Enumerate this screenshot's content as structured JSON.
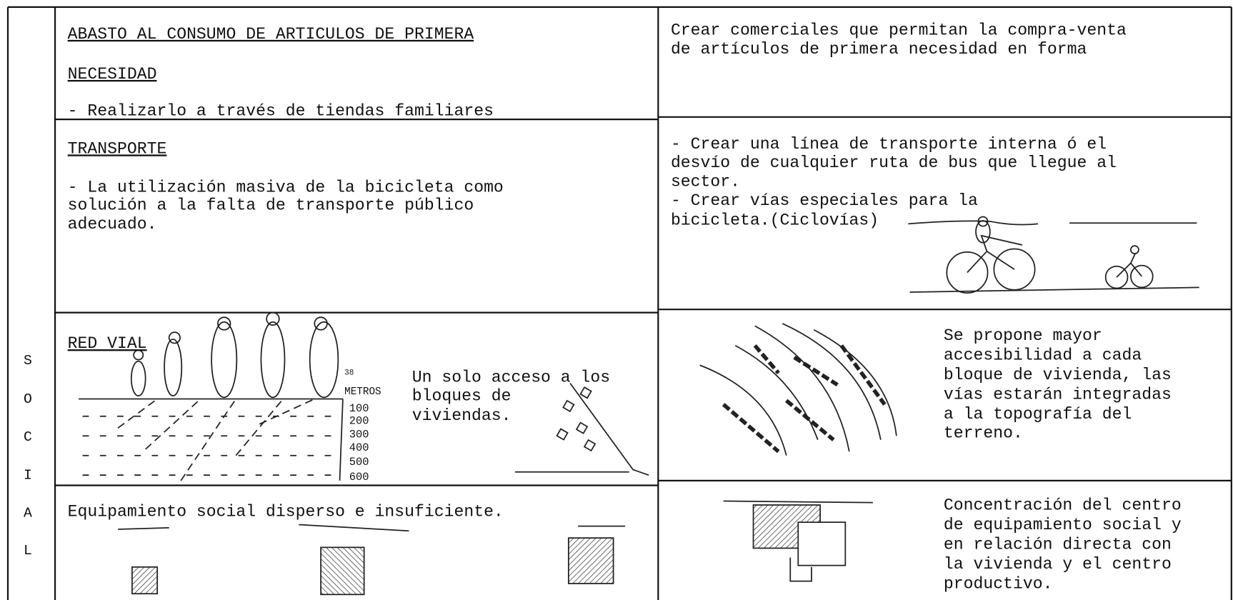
{
  "sidebar": {
    "letters": [
      "S",
      "O",
      "C",
      "I",
      "A",
      "L"
    ]
  },
  "rows": [
    {
      "left": {
        "title_lines": [
          "ABASTO AL CONSUMO DE ARTICULOS DE PRIMERA",
          "NECESIDAD"
        ],
        "lines": [
          "- Realizarlo a través de tiendas familiares"
        ]
      },
      "right": {
        "lines": [
          "Crear comerciales que permitan la compra-venta",
          "de artículos de primera necesidad en forma"
        ]
      }
    },
    {
      "left": {
        "title_lines": [
          "TRANSPORTE"
        ],
        "lines": [
          "- La utilización masiva de la bicicleta como",
          "solución a la falta de transporte público",
          "adecuado."
        ]
      },
      "right": {
        "lines": [
          "- Crear una línea de transporte interna ó el",
          "desvío de cualquier ruta de bus que llegue al",
          "sector.",
          "- Crear vías especiales para la",
          "bicicleta.(Ciclovías)"
        ]
      }
    },
    {
      "left": {
        "title_lines": [
          "RED VIAL"
        ],
        "scale_top": "38",
        "scale_unit": "METROS",
        "scale_labels": [
          "100",
          "200",
          "300",
          "400",
          "500",
          "600"
        ],
        "lines": [
          "Un solo acceso a los",
          "bloques de",
          "viviendas."
        ]
      },
      "right": {
        "lines": [
          "Se propone mayor",
          "accesibilidad a cada",
          "bloque de vivienda, las",
          "vías estarán integradas",
          "a la topografía del",
          "terreno."
        ]
      }
    },
    {
      "left": {
        "lines": [
          "Equipamiento social disperso e insuficiente."
        ]
      },
      "right": {
        "lines": [
          "Concentración del centro",
          "de equipamiento social y",
          "en relación directa con",
          "la vivienda y el centro",
          "productivo."
        ]
      }
    }
  ]
}
